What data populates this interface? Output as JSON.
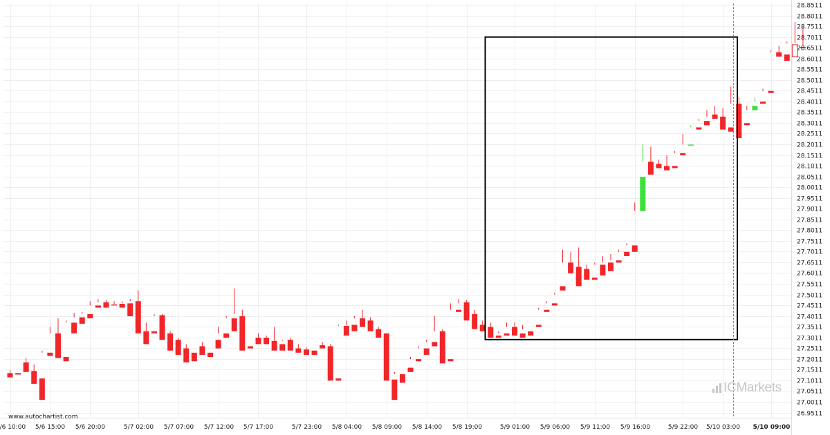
{
  "source_label": "www.autochartist.com",
  "watermark": "ICMarkets",
  "colors": {
    "up": "#3be03b",
    "down": "#f0262a",
    "grid": "#eeeeee",
    "box": "#000000"
  },
  "chart_data": {
    "type": "candlestick",
    "title": "",
    "ylim": [
      26.9311,
      28.8711
    ],
    "y_ticks": [
      "28.8511",
      "28.8011",
      "28.7511",
      "28.7011",
      "28.6511",
      "28.6011",
      "28.5511",
      "28.5011",
      "28.4511",
      "28.4011",
      "28.3511",
      "28.3011",
      "28.2511",
      "28.2011",
      "28.1511",
      "28.1011",
      "28.0511",
      "28.0011",
      "27.9511",
      "27.9011",
      "27.8511",
      "27.8011",
      "27.7511",
      "27.7011",
      "27.6511",
      "27.6011",
      "27.5511",
      "27.5011",
      "27.4511",
      "27.4011",
      "27.3511",
      "27.3011",
      "27.2511",
      "27.2011",
      "27.1511",
      "27.1011",
      "27.0511",
      "27.0011",
      "26.9511"
    ],
    "x_ticks": [
      {
        "label": "5/6 10:00",
        "index": 0
      },
      {
        "label": "5/6 15:00",
        "index": 5
      },
      {
        "label": "5/6 20:00",
        "index": 10
      },
      {
        "label": "5/7 02:00",
        "index": 16
      },
      {
        "label": "5/7 07:00",
        "index": 21
      },
      {
        "label": "5/7 12:00",
        "index": 26
      },
      {
        "label": "5/7 17:00",
        "index": 31
      },
      {
        "label": "5/7 23:00",
        "index": 37
      },
      {
        "label": "5/8 04:00",
        "index": 42
      },
      {
        "label": "5/8 09:00",
        "index": 47
      },
      {
        "label": "5/8 14:00",
        "index": 52
      },
      {
        "label": "5/8 19:00",
        "index": 57
      },
      {
        "label": "5/9 01:00",
        "index": 63
      },
      {
        "label": "5/9 06:00",
        "index": 68
      },
      {
        "label": "5/9 11:00",
        "index": 73
      },
      {
        "label": "5/9 16:00",
        "index": 78
      },
      {
        "label": "5/9 22:00",
        "index": 84
      },
      {
        "label": "5/10 03:00",
        "index": 89
      },
      {
        "label": "5/10 09:00",
        "index": 95
      }
    ],
    "highlight_x_tick": "5/10 09:00",
    "candles": [
      [
        27.135,
        27.148,
        27.12,
        27.115
      ],
      [
        27.135,
        27.185,
        27.185,
        27.128
      ],
      [
        27.185,
        27.205,
        27.145,
        27.14
      ],
      [
        27.145,
        27.175,
        27.11,
        27.085
      ],
      [
        27.11,
        27.24,
        27.23,
        27.01
      ],
      [
        27.23,
        27.35,
        27.32,
        27.215
      ],
      [
        27.32,
        27.39,
        27.22,
        27.205
      ],
      [
        27.21,
        27.38,
        27.37,
        27.19
      ],
      [
        27.37,
        27.415,
        27.395,
        27.32
      ],
      [
        27.395,
        27.42,
        27.41,
        27.365
      ],
      [
        27.41,
        27.47,
        27.45,
        27.39
      ],
      [
        27.45,
        27.48,
        27.465,
        27.44
      ],
      [
        27.465,
        27.475,
        27.455,
        27.44
      ],
      [
        27.455,
        27.47,
        27.458,
        27.45
      ],
      [
        27.458,
        27.47,
        27.46,
        27.44
      ],
      [
        27.46,
        27.48,
        27.47,
        27.4
      ],
      [
        27.47,
        27.52,
        27.33,
        27.32
      ],
      [
        27.33,
        27.37,
        27.33,
        27.27
      ],
      [
        27.33,
        27.41,
        27.4,
        27.32
      ],
      [
        27.405,
        27.41,
        27.33,
        27.29
      ],
      [
        27.32,
        27.33,
        27.29,
        27.24
      ],
      [
        27.29,
        27.3,
        27.24,
        27.22
      ],
      [
        27.25,
        27.27,
        27.23,
        27.185
      ],
      [
        27.23,
        27.26,
        27.26,
        27.19
      ],
      [
        27.26,
        27.28,
        27.23,
        27.22
      ],
      [
        27.23,
        27.29,
        27.29,
        27.21
      ],
      [
        27.29,
        27.35,
        27.32,
        27.25
      ],
      [
        27.32,
        27.4,
        27.39,
        27.3
      ],
      [
        27.39,
        27.53,
        27.41,
        27.33
      ],
      [
        27.4,
        27.43,
        27.26,
        27.24
      ],
      [
        27.26,
        27.3,
        27.3,
        27.25
      ],
      [
        27.3,
        27.32,
        27.3,
        27.27
      ],
      [
        27.3,
        27.31,
        27.285,
        27.27
      ],
      [
        27.285,
        27.35,
        27.27,
        27.24
      ],
      [
        27.27,
        27.29,
        27.285,
        27.24
      ],
      [
        27.29,
        27.3,
        27.25,
        27.24
      ],
      [
        27.25,
        27.27,
        27.245,
        27.23
      ],
      [
        27.245,
        27.255,
        27.24,
        27.22
      ],
      [
        27.24,
        27.265,
        27.265,
        27.22
      ],
      [
        27.265,
        27.28,
        27.262,
        27.25
      ],
      [
        27.26,
        27.27,
        27.11,
        27.1
      ],
      [
        27.11,
        27.36,
        27.355,
        27.1
      ],
      [
        27.355,
        27.38,
        27.36,
        27.31
      ],
      [
        27.36,
        27.4,
        27.39,
        27.33
      ],
      [
        27.39,
        27.43,
        27.38,
        27.35
      ],
      [
        27.38,
        27.395,
        27.34,
        27.33
      ],
      [
        27.34,
        27.35,
        27.34,
        27.3
      ],
      [
        27.32,
        27.32,
        27.105,
        27.1
      ],
      [
        27.105,
        27.14,
        27.13,
        27.01
      ],
      [
        27.13,
        27.16,
        27.16,
        27.09
      ],
      [
        27.16,
        27.21,
        27.2,
        27.14
      ],
      [
        27.2,
        27.26,
        27.25,
        27.19
      ],
      [
        27.25,
        27.29,
        27.28,
        27.22
      ],
      [
        27.28,
        27.4,
        27.33,
        27.26
      ],
      [
        27.33,
        27.34,
        27.2,
        27.18
      ],
      [
        27.2,
        27.46,
        27.43,
        27.19
      ],
      [
        27.43,
        27.48,
        27.46,
        27.42
      ],
      [
        27.465,
        27.475,
        27.41,
        27.38
      ],
      [
        27.41,
        27.43,
        27.36,
        27.34
      ],
      [
        27.36,
        27.38,
        27.35,
        27.33
      ],
      [
        27.35,
        27.37,
        27.31,
        27.3
      ],
      [
        27.31,
        27.33,
        27.32,
        27.3
      ],
      [
        27.32,
        27.37,
        27.35,
        27.31
      ],
      [
        27.35,
        27.37,
        27.32,
        27.31
      ],
      [
        27.32,
        27.36,
        27.34,
        27.3
      ],
      [
        27.33,
        27.36,
        27.36,
        27.31
      ],
      [
        27.36,
        27.44,
        27.43,
        27.35
      ],
      [
        27.43,
        27.47,
        27.46,
        27.42
      ],
      [
        27.46,
        27.51,
        27.5,
        27.45
      ],
      [
        27.54,
        27.71,
        27.65,
        27.52
      ],
      [
        27.65,
        27.7,
        27.63,
        27.6
      ],
      [
        27.63,
        27.72,
        27.62,
        27.54
      ],
      [
        27.62,
        27.64,
        27.58,
        27.57
      ],
      [
        27.58,
        27.65,
        27.64,
        27.57
      ],
      [
        27.64,
        27.68,
        27.65,
        27.59
      ],
      [
        27.65,
        27.69,
        27.66,
        27.61
      ],
      [
        27.66,
        27.71,
        27.7,
        27.65
      ],
      [
        27.7,
        27.74,
        27.73,
        27.68
      ],
      [
        27.73,
        27.93,
        27.89,
        27.7
      ],
      [
        27.89,
        28.2,
        28.12,
        28.05
      ],
      [
        28.12,
        28.19,
        28.11,
        28.06
      ],
      [
        28.11,
        28.13,
        28.1,
        28.09
      ],
      [
        28.1,
        28.15,
        28.09,
        28.08
      ],
      [
        28.1,
        28.17,
        28.16,
        28.09
      ],
      [
        28.16,
        28.25,
        28.2,
        28.15
      ],
      [
        28.2,
        28.29,
        28.28,
        28.2
      ],
      [
        28.28,
        28.32,
        28.31,
        28.27
      ],
      [
        28.31,
        28.36,
        28.33,
        28.29
      ],
      [
        28.34,
        28.38,
        28.335,
        28.32
      ],
      [
        28.33,
        28.37,
        28.28,
        28.27
      ],
      [
        28.28,
        28.47,
        28.39,
        28.26
      ],
      [
        28.39,
        28.42,
        28.3,
        28.23
      ],
      [
        28.3,
        28.38,
        28.36,
        28.29
      ],
      [
        28.36,
        28.42,
        28.4,
        28.38
      ],
      [
        28.4,
        28.46,
        28.45,
        28.39
      ],
      [
        28.45,
        28.64,
        28.63,
        28.44
      ],
      [
        28.63,
        28.66,
        28.62,
        28.61
      ],
      [
        28.62,
        28.68,
        28.67,
        28.59
      ],
      [
        28.665,
        28.77,
        28.675,
        28.61
      ],
      [
        28.655,
        28.75,
        28.66,
        28.65
      ]
    ],
    "rectangle": {
      "x_start_index": 63,
      "x_end_index": 96,
      "y_top": 28.7011,
      "y_bottom": 27.2911
    },
    "current_time_index": 96
  }
}
